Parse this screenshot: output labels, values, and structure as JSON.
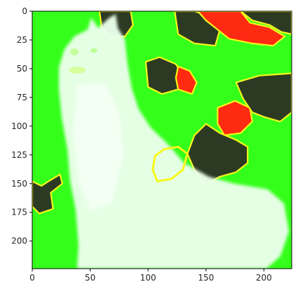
{
  "chart_data": {
    "type": "heatmap",
    "title": "",
    "xlabel": "",
    "ylabel": "",
    "xlim": [
      0,
      224
    ],
    "ylim": [
      224,
      0
    ],
    "x_ticks": [
      0,
      50,
      100,
      150,
      200
    ],
    "y_ticks": [
      0,
      25,
      50,
      75,
      100,
      125,
      150,
      175,
      200
    ],
    "x_tick_labels": [
      "0",
      "50",
      "100",
      "150",
      "200"
    ],
    "y_tick_labels": [
      "0",
      "25",
      "50",
      "75",
      "100",
      "125",
      "150",
      "175",
      "200"
    ],
    "grid": false,
    "legend": "none",
    "image_content": "superpixel segmentation overlay on a photo of a white Samoyed dog sitting on grass",
    "colors": {
      "background_overlay": "#33ff1a",
      "dog_overlay": "#e8ffe8",
      "dark_segment": "#2c3a24",
      "red_segment": "#ff2a12",
      "boundary": "#f6f81b",
      "axis": "#000000",
      "tick_text": "#262626"
    },
    "segments": [
      {
        "class": "dark",
        "points": [
          [
            58,
            0
          ],
          [
            85,
            0
          ],
          [
            87,
            12
          ],
          [
            80,
            22
          ],
          [
            68,
            22
          ],
          [
            60,
            14
          ]
        ]
      },
      {
        "class": "dark",
        "points": [
          [
            123,
            0
          ],
          [
            140,
            0
          ],
          [
            158,
            6
          ],
          [
            162,
            16
          ],
          [
            158,
            30
          ],
          [
            140,
            28
          ],
          [
            126,
            20
          ]
        ]
      },
      {
        "class": "red",
        "points": [
          [
            143,
            0
          ],
          [
            180,
            0
          ],
          [
            188,
            10
          ],
          [
            205,
            14
          ],
          [
            218,
            22
          ],
          [
            208,
            30
          ],
          [
            190,
            28
          ],
          [
            170,
            24
          ],
          [
            160,
            16
          ],
          [
            150,
            8
          ]
        ]
      },
      {
        "class": "dark",
        "points": [
          [
            180,
            0
          ],
          [
            224,
            0
          ],
          [
            224,
            20
          ],
          [
            215,
            18
          ],
          [
            205,
            12
          ],
          [
            190,
            8
          ]
        ]
      },
      {
        "class": "dark",
        "points": [
          [
            98,
            44
          ],
          [
            110,
            40
          ],
          [
            124,
            46
          ],
          [
            130,
            56
          ],
          [
            126,
            68
          ],
          [
            112,
            72
          ],
          [
            100,
            66
          ]
        ]
      },
      {
        "class": "red",
        "points": [
          [
            126,
            48
          ],
          [
            136,
            52
          ],
          [
            142,
            62
          ],
          [
            138,
            72
          ],
          [
            126,
            68
          ],
          [
            124,
            58
          ]
        ]
      },
      {
        "class": "red",
        "points": [
          [
            160,
            84
          ],
          [
            175,
            78
          ],
          [
            188,
            84
          ],
          [
            190,
            96
          ],
          [
            180,
            106
          ],
          [
            166,
            108
          ],
          [
            160,
            98
          ]
        ]
      },
      {
        "class": "dark",
        "points": [
          [
            176,
            62
          ],
          [
            196,
            56
          ],
          [
            224,
            54
          ],
          [
            224,
            88
          ],
          [
            214,
            96
          ],
          [
            200,
            92
          ],
          [
            190,
            88
          ],
          [
            182,
            76
          ]
        ]
      },
      {
        "class": "dark",
        "points": [
          [
            140,
            108
          ],
          [
            150,
            98
          ],
          [
            162,
            106
          ],
          [
            176,
            112
          ],
          [
            186,
            118
          ],
          [
            186,
            132
          ],
          [
            176,
            140
          ],
          [
            162,
            144
          ],
          [
            150,
            150
          ],
          [
            140,
            138
          ],
          [
            134,
            124
          ]
        ]
      },
      {
        "class": "dark",
        "points": [
          [
            0,
            148
          ],
          [
            8,
            152
          ],
          [
            14,
            148
          ],
          [
            24,
            142
          ],
          [
            26,
            150
          ],
          [
            16,
            158
          ],
          [
            18,
            172
          ],
          [
            6,
            176
          ],
          [
            0,
            170
          ]
        ]
      },
      {
        "class": "outline",
        "points": [
          [
            106,
            126
          ],
          [
            114,
            120
          ],
          [
            126,
            118
          ],
          [
            134,
            124
          ],
          [
            130,
            138
          ],
          [
            120,
            146
          ],
          [
            108,
            148
          ],
          [
            104,
            138
          ]
        ]
      }
    ]
  }
}
